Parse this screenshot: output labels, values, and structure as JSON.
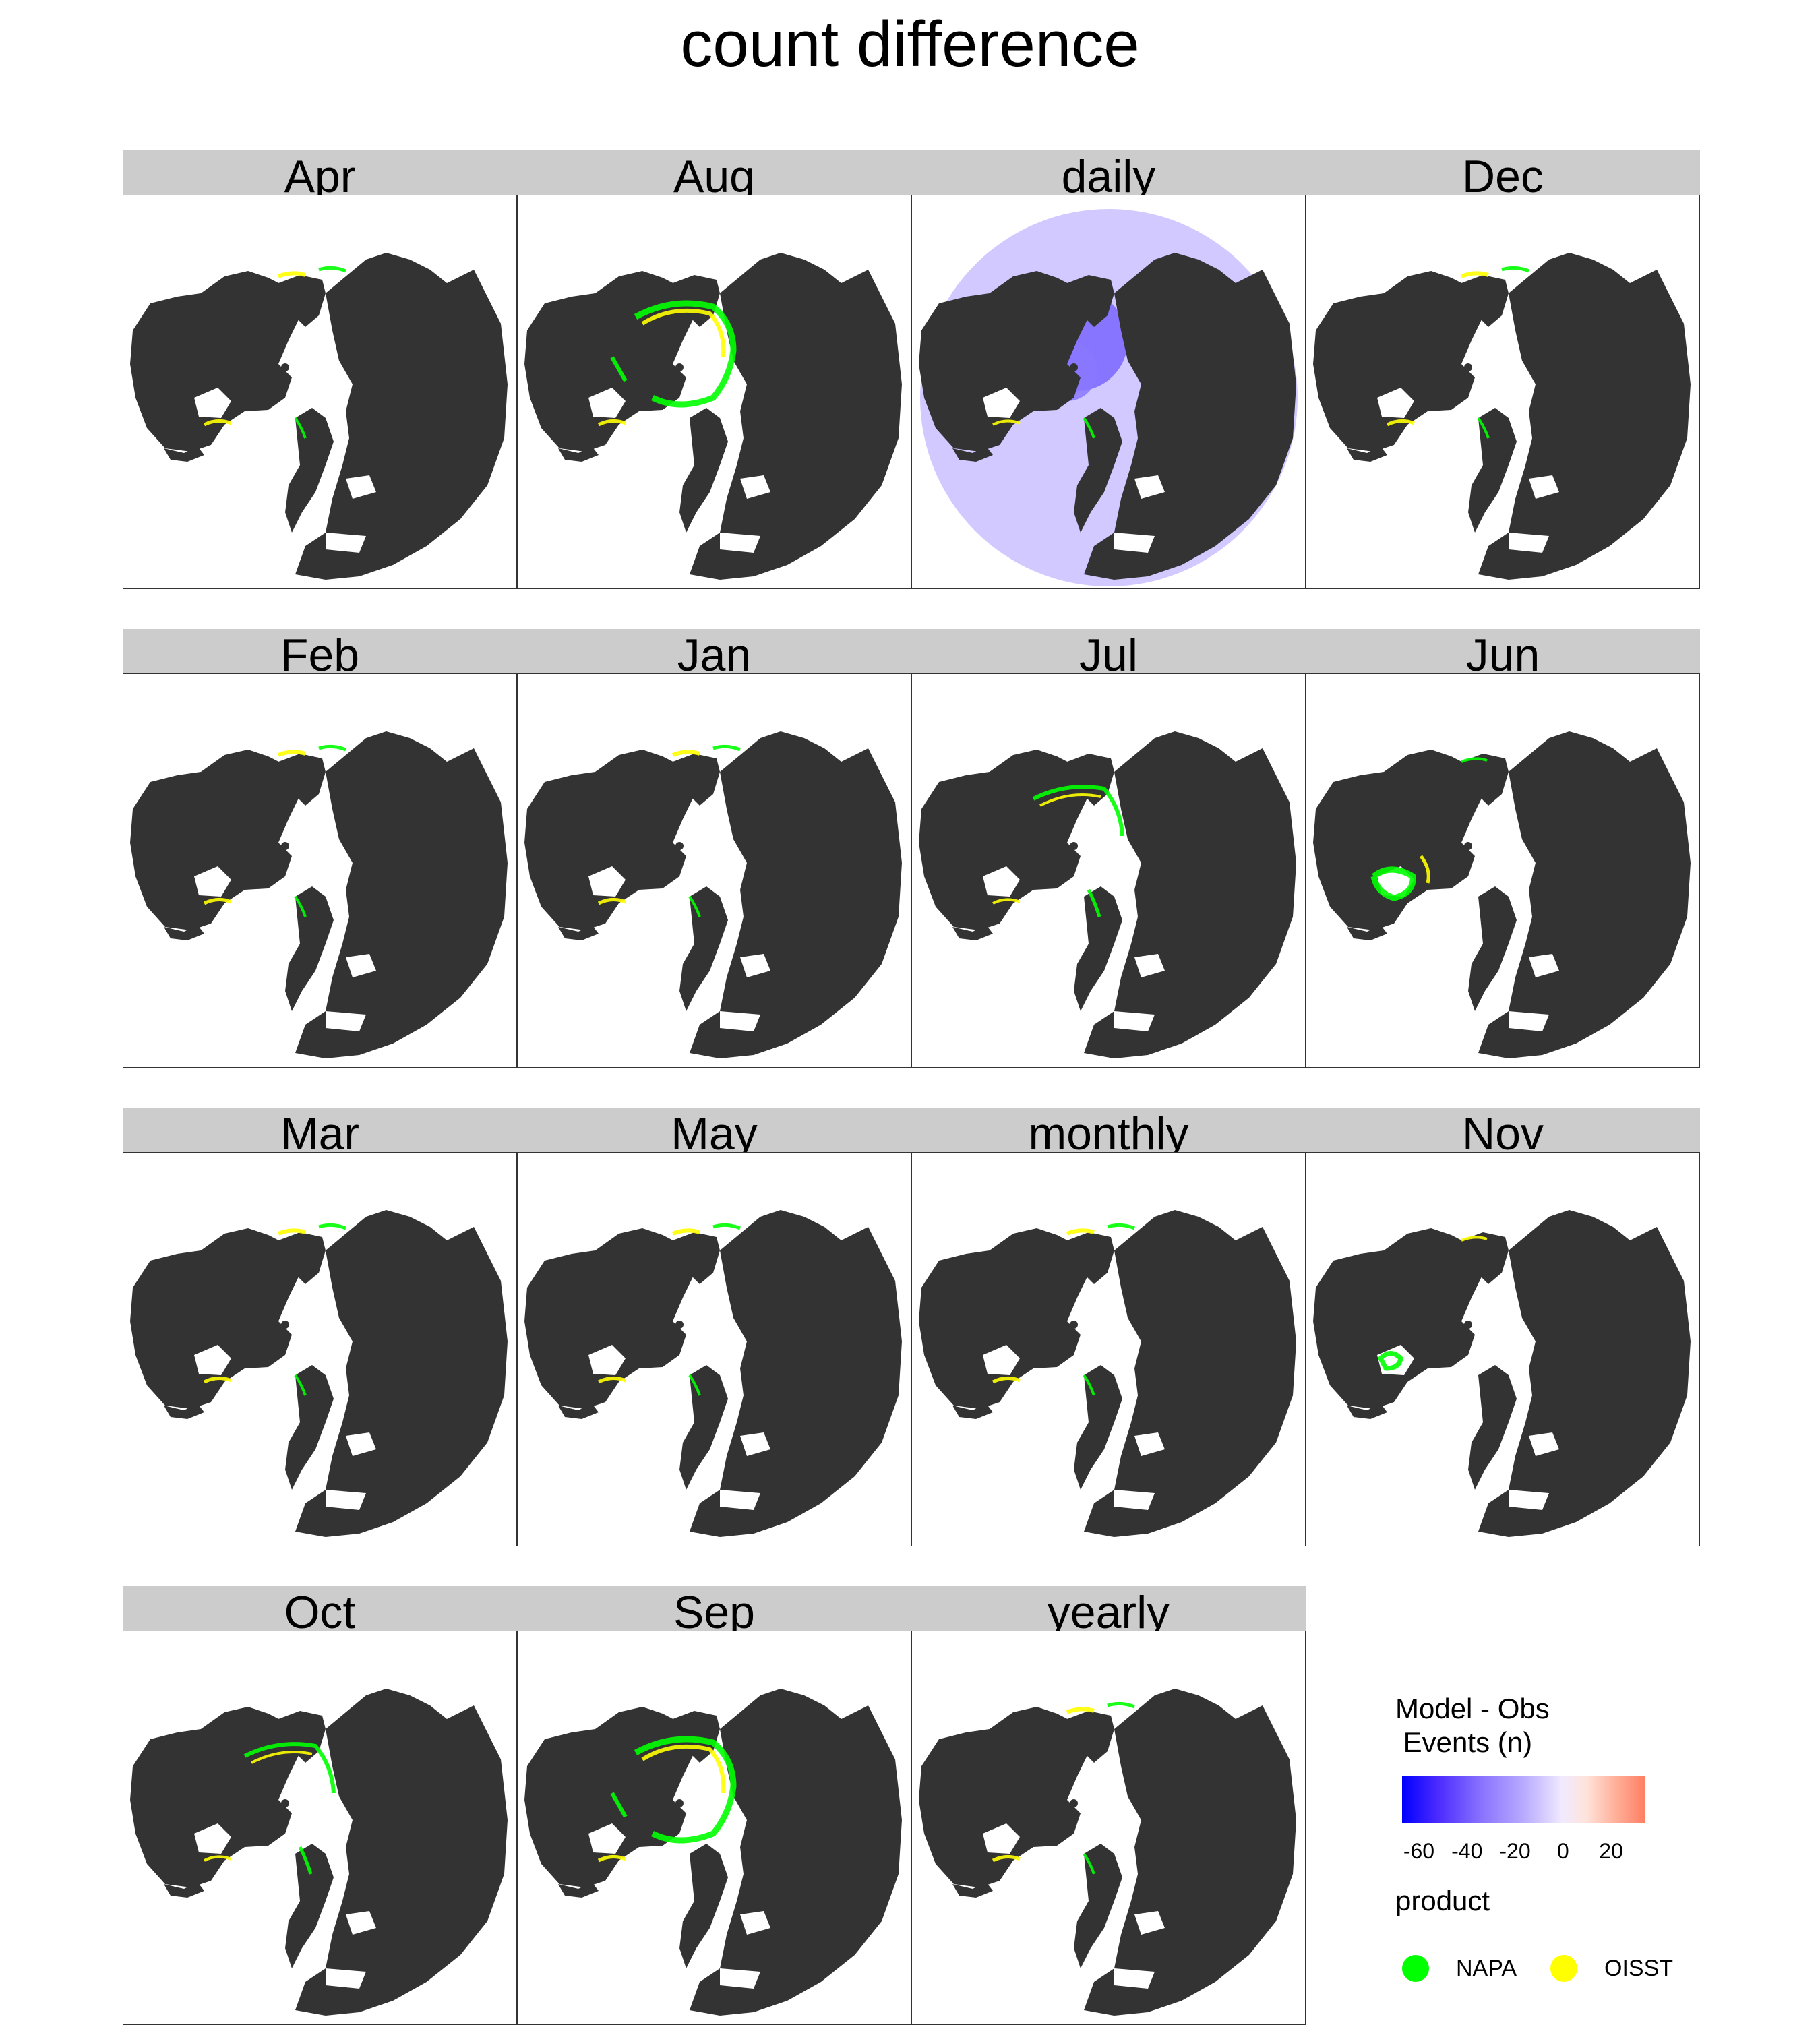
{
  "chart_data": {
    "type": "heatmap",
    "title": "count difference",
    "projection": "north polar stereographic map",
    "panels": [
      "Apr",
      "Aug",
      "daily",
      "Dec",
      "Feb",
      "Jan",
      "Jul",
      "Jun",
      "Mar",
      "May",
      "monthly",
      "Nov",
      "Oct",
      "Sep",
      "yearly"
    ],
    "panel_highlights": {
      "Apr": "sparse",
      "Aug": "arctic-edge",
      "daily": "full-coverage",
      "Dec": "sparse",
      "Feb": "sparse",
      "Jan": "sparse",
      "Jul": "arctic-edge-light",
      "Jun": "hudson",
      "Mar": "sparse",
      "May": "sparse",
      "monthly": "sparse",
      "Nov": "hudson-light",
      "Oct": "arctic-edge-light",
      "Sep": "arctic-edge",
      "yearly": "sparse"
    },
    "colorbar": {
      "title": "Model - Obs\n Events (n)",
      "ticks": [
        -60,
        -40,
        -20,
        0,
        20
      ],
      "range": [
        -67,
        34
      ],
      "colors": [
        "#0000ff",
        "#ffffff",
        "#ff7f62"
      ]
    },
    "legend": {
      "title": "product",
      "items": [
        {
          "label": "NAPA",
          "color": "#00ff00"
        },
        {
          "label": "OISST",
          "color": "#ffff00"
        }
      ]
    },
    "land_color": "#333333"
  }
}
